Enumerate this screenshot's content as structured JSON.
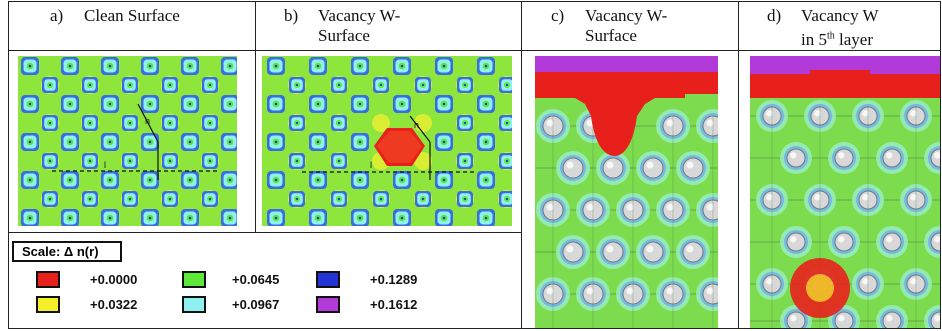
{
  "captions": {
    "a": {
      "letter": "a)",
      "line1": "Clean Surface",
      "line2": ""
    },
    "b": {
      "letter": "b)",
      "line1": "Vacancy W-",
      "line2": "Surface"
    },
    "c": {
      "letter": "c)",
      "line1": "Vacancy W-",
      "line2": "Surface"
    },
    "d": {
      "letter": "d)",
      "line1": "Vacancy W",
      "line2_main": "in 5",
      "line2_sup": "th",
      "line2_end": " layer"
    }
  },
  "map_labels": {
    "h": "h",
    "l": "l"
  },
  "scale": {
    "title": "Scale:  Δ n(r)",
    "entries": [
      {
        "value": "+0.0000",
        "color": "#e8201c"
      },
      {
        "value": "+0.0322",
        "color": "#f4ef2a"
      },
      {
        "value": "+0.0645",
        "color": "#5ee83a"
      },
      {
        "value": "+0.0967",
        "color": "#8ef0f0"
      },
      {
        "value": "+0.1289",
        "color": "#2433d6"
      },
      {
        "value": "+0.1612",
        "color": "#b23ad8"
      }
    ]
  }
}
